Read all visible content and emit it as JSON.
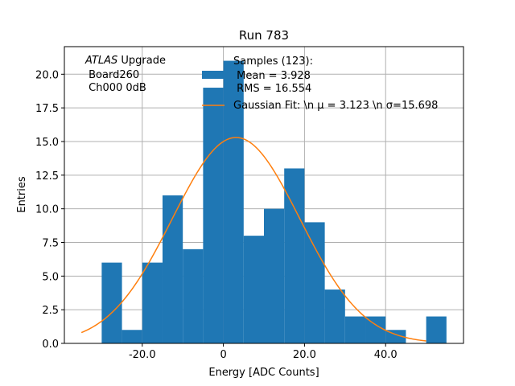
{
  "chart_data": {
    "type": "bar",
    "title": "Run 783",
    "xlabel": "Energy [ADC Counts]",
    "ylabel": "Entries",
    "xlim": [
      -39.2,
      59.2
    ],
    "ylim": [
      0,
      22.05
    ],
    "grid": true,
    "x_ticks": [
      {
        "value": -20,
        "label": "-20.0"
      },
      {
        "value": 0,
        "label": "0"
      },
      {
        "value": 20,
        "label": "20.0"
      },
      {
        "value": 40,
        "label": "40.0"
      }
    ],
    "y_ticks": [
      {
        "value": 0,
        "label": "0.0"
      },
      {
        "value": 2.5,
        "label": "2.5"
      },
      {
        "value": 5,
        "label": "5.0"
      },
      {
        "value": 7.5,
        "label": "7.5"
      },
      {
        "value": 10,
        "label": "10.0"
      },
      {
        "value": 12.5,
        "label": "12.5"
      },
      {
        "value": 15,
        "label": "15.0"
      },
      {
        "value": 17.5,
        "label": "17.5"
      },
      {
        "value": 20,
        "label": "20.0"
      }
    ],
    "histogram": {
      "name": "Samples (123):",
      "color": "#1f77b4",
      "bin_edges": [
        -30,
        -25,
        -20,
        -15,
        -10,
        -5,
        0,
        5,
        10,
        15,
        20,
        25,
        30,
        35,
        40,
        45,
        50,
        55
      ],
      "counts": [
        6,
        1,
        6,
        11,
        7,
        19,
        21,
        8,
        10,
        13,
        9,
        4,
        2,
        2,
        1,
        0,
        2
      ]
    },
    "fit": {
      "name": "Gaussian Fit",
      "color": "#ff7f0e",
      "mu": 3.123,
      "sigma": 15.698,
      "amplitude": 15.3,
      "x_range": [
        -35,
        50
      ]
    },
    "annotation": {
      "italic": "ATLAS",
      "line1_rest": " Upgrade",
      "line2": " Board260",
      "line3": " Ch000 0dB"
    },
    "legend": {
      "placement": "top-center",
      "hist_line1": "Samples (123):",
      "hist_line2": " Mean = 3.928",
      "hist_line3": " RMS = 16.554",
      "fit_label": "Gaussian Fit: \\n μ = 3.123 \\n σ=15.698"
    }
  }
}
